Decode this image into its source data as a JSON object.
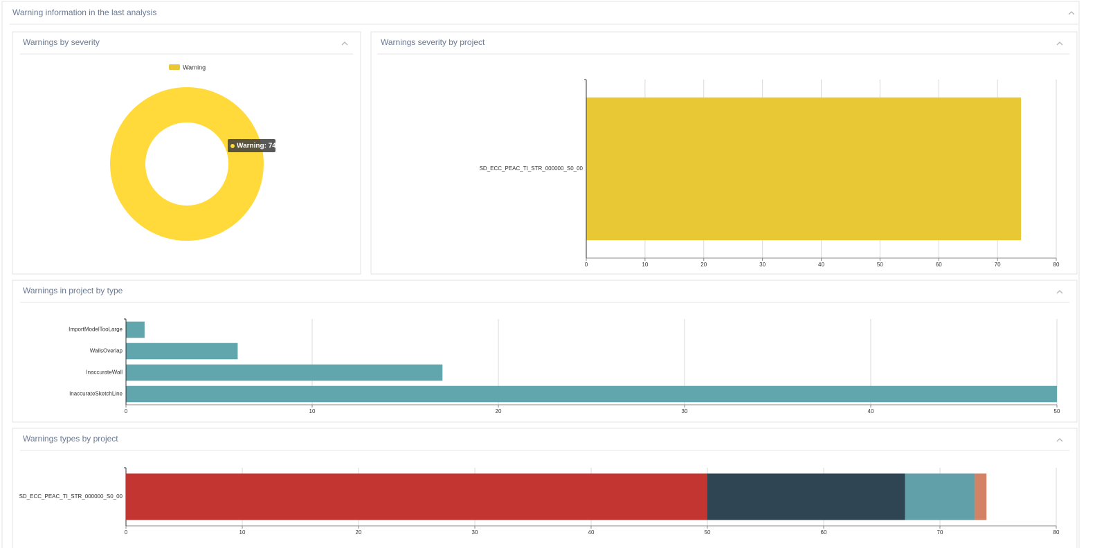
{
  "header": {
    "title": "Warning information in the last analysis"
  },
  "chart_data": [
    {
      "type": "pie",
      "title": "Warnings by severity",
      "categories": [
        "Warning"
      ],
      "values": [
        74
      ],
      "colors": [
        "#FFDA3A"
      ],
      "legend_colors": [
        "#E8C835"
      ],
      "donut": true,
      "legend": "top",
      "annotations": [
        {
          "text": "Warning: 74"
        }
      ]
    },
    {
      "type": "hbar",
      "title": "Warnings severity by project",
      "categories": [
        "SD_ECC_PEAC_TI_STR_000000_S0_00"
      ],
      "values": [
        74
      ],
      "color": "#E8C835",
      "xlim": [
        0,
        80
      ],
      "xticks": [
        0,
        10,
        20,
        30,
        40,
        50,
        60,
        70,
        80
      ],
      "grid": true
    },
    {
      "type": "hbar",
      "title": "Warnings in project by type",
      "categories": [
        "ImportModelTooLarge",
        "WallsOverlap",
        "InaccurateWall",
        "InaccurateSketchLine"
      ],
      "values": [
        1,
        6,
        17,
        50
      ],
      "color": "#62A6AD",
      "xlim": [
        0,
        50
      ],
      "xticks": [
        0,
        10,
        20,
        30,
        40,
        50
      ],
      "grid": true
    },
    {
      "type": "stacked-hbar",
      "title": "Warnings types by project",
      "categories": [
        "SD_ECC_PEAC_TI_STR_000000_S0_00"
      ],
      "series": [
        {
          "color": "#C23531",
          "values": [
            50
          ]
        },
        {
          "color": "#2F4554",
          "values": [
            17
          ]
        },
        {
          "color": "#61A0A8",
          "values": [
            6
          ]
        },
        {
          "color": "#D48265",
          "values": [
            1
          ]
        }
      ],
      "xlim": [
        0,
        80
      ],
      "xticks": [
        0,
        10,
        20,
        30,
        40,
        50,
        60,
        70,
        80
      ],
      "grid": true
    }
  ]
}
